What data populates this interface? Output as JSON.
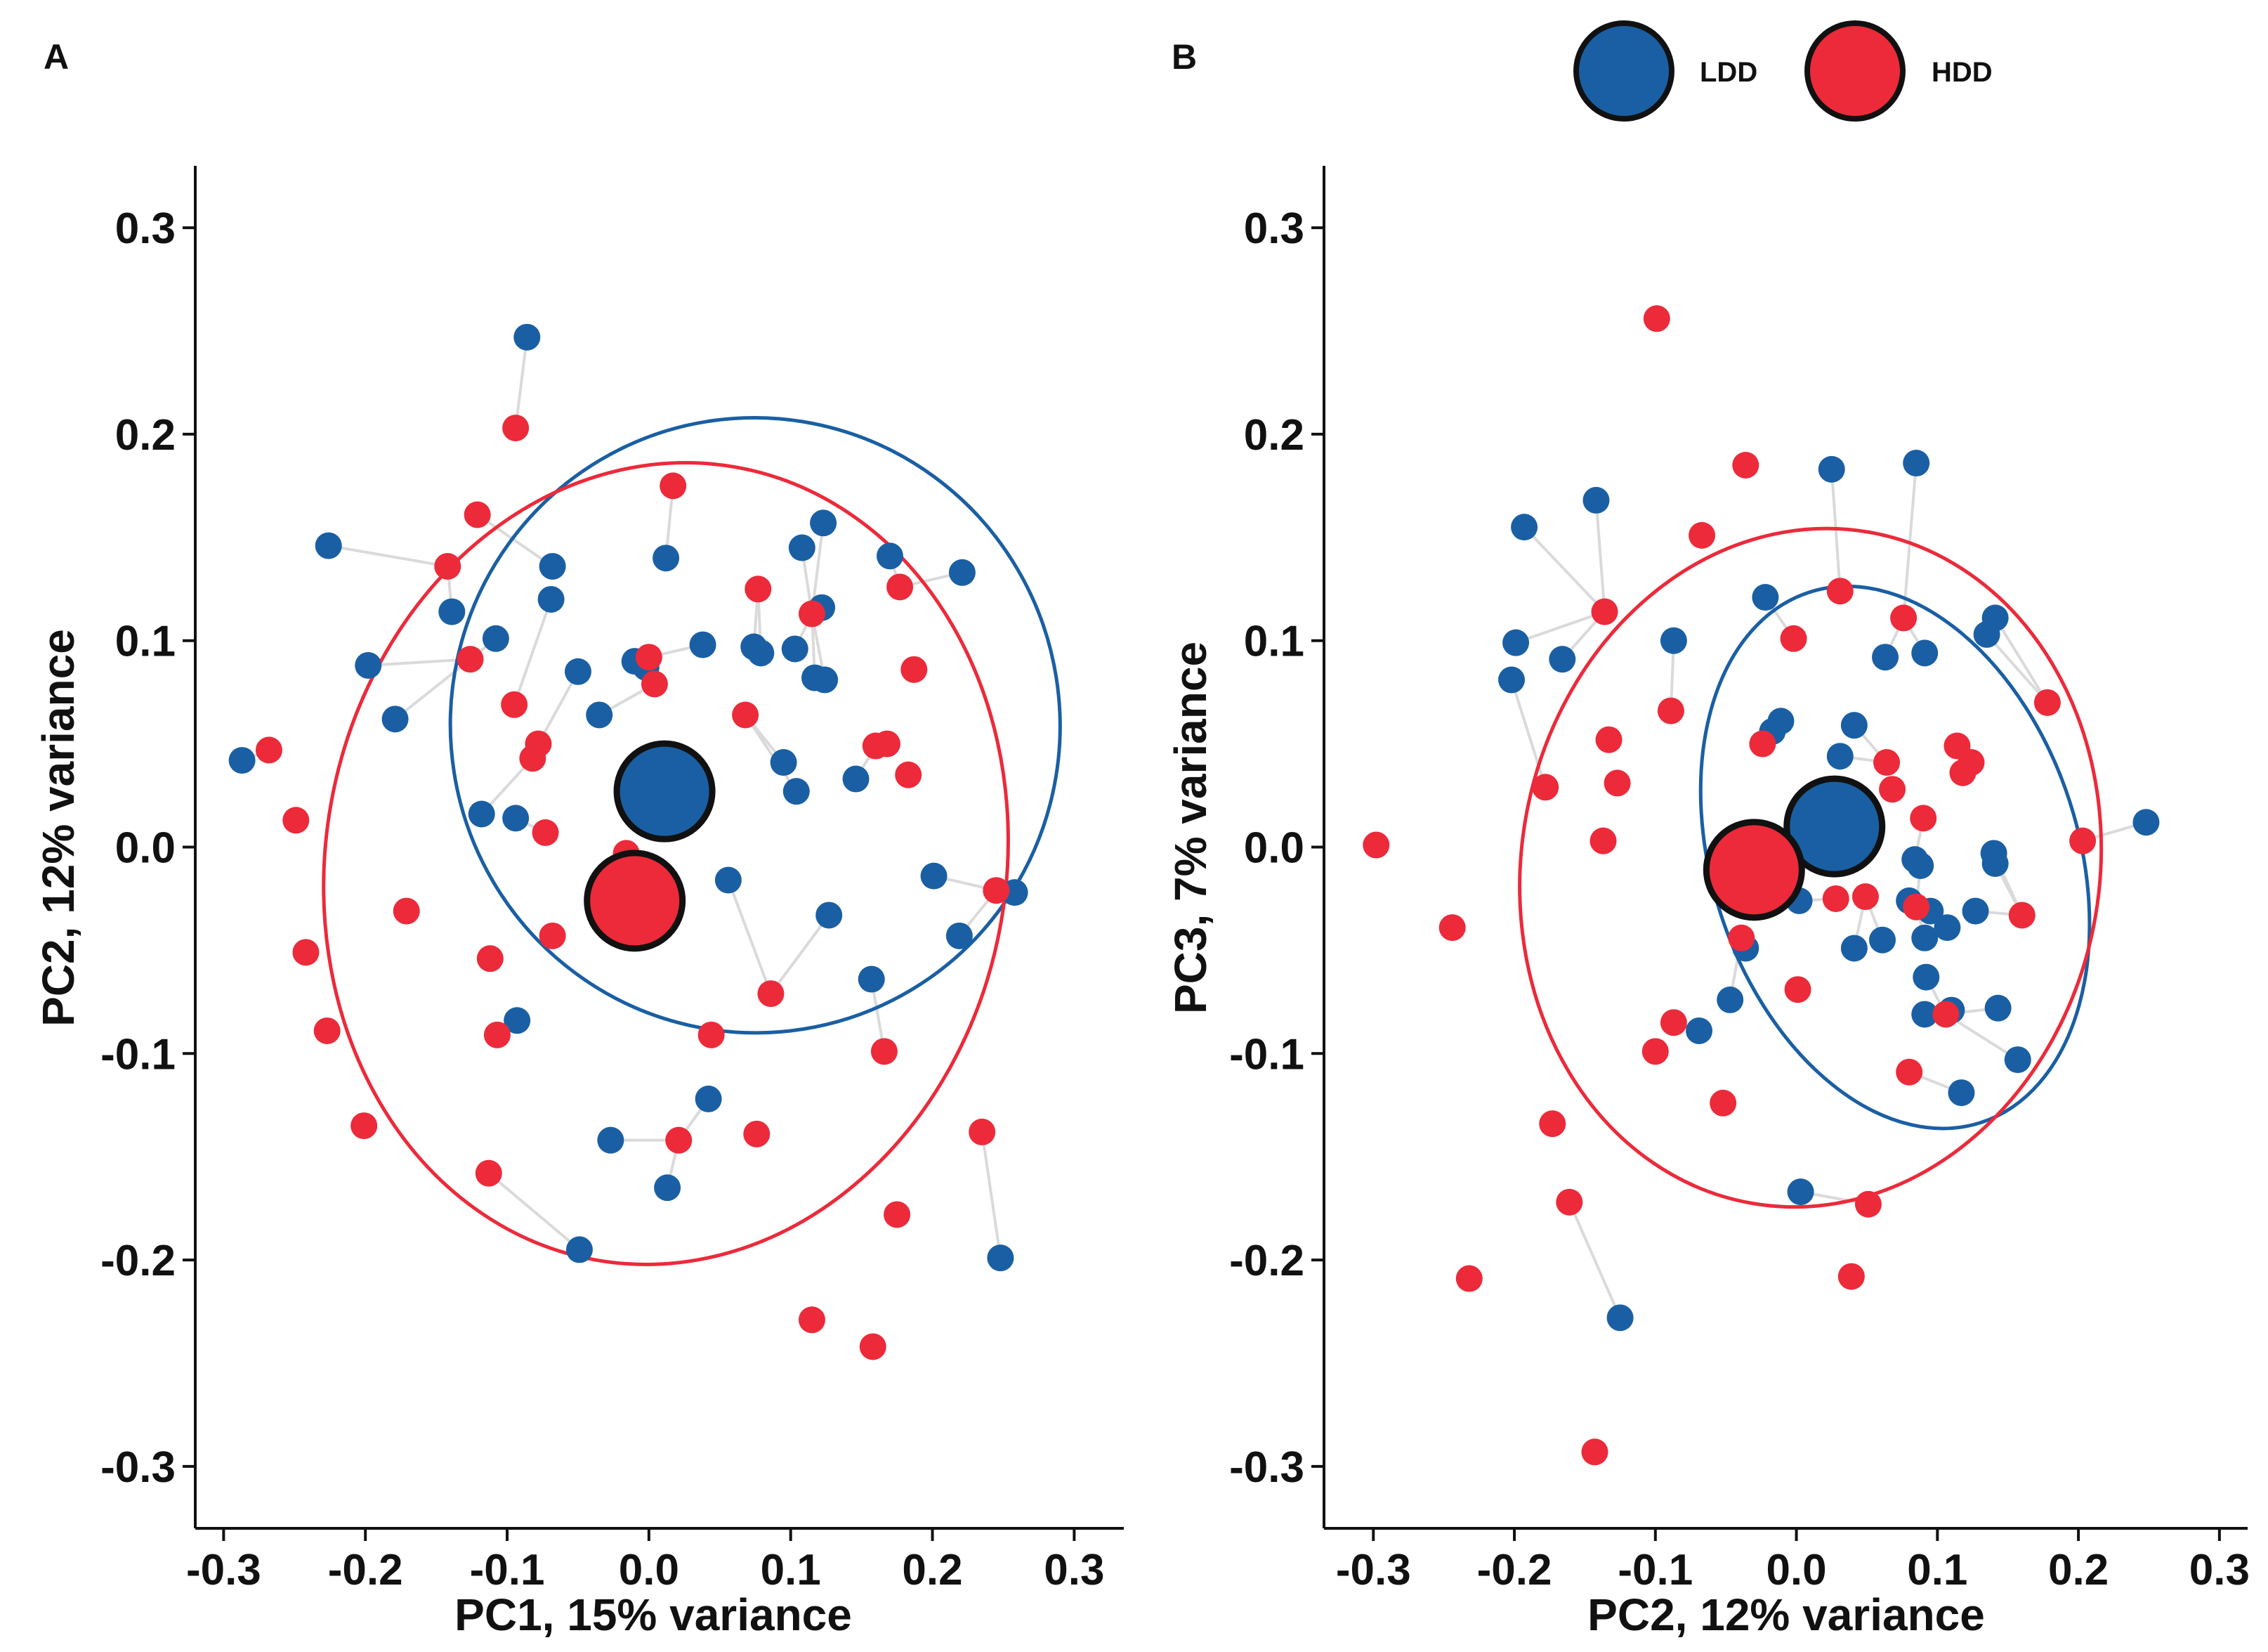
{
  "colors": {
    "LDD": "#1a5fa3",
    "HDD": "#ec2a3a",
    "link": "#dadada",
    "axis": "#111111"
  },
  "legend": {
    "items": [
      {
        "label": "LDD",
        "group": "LDD"
      },
      {
        "label": "HDD",
        "group": "HDD"
      }
    ]
  },
  "chart_data": [
    {
      "type": "scatter",
      "panel_label": "A",
      "xlabel": "PC1, 15% variance",
      "ylabel": "PC2, 12% variance",
      "xlim": [
        -0.32,
        0.335
      ],
      "ylim": [
        -0.33,
        0.33
      ],
      "xticks": [
        -0.3,
        -0.2,
        -0.1,
        0.0,
        0.1,
        0.2,
        0.3
      ],
      "yticks": [
        -0.3,
        -0.2,
        -0.1,
        0.0,
        0.1,
        0.2,
        0.3
      ],
      "xtick_labels": [
        "-0.3",
        "-0.2",
        "-0.1",
        "0.0",
        "0.1",
        "0.2",
        "0.3"
      ],
      "ytick_labels": [
        "-0.3",
        "-0.2",
        "-0.1",
        "0.0",
        "0.1",
        "0.2",
        "0.3"
      ],
      "grid": false,
      "centroids": [
        {
          "group": "LDD",
          "x": 0.011,
          "y": 0.027
        },
        {
          "group": "HDD",
          "x": -0.01,
          "y": -0.026
        }
      ],
      "ellipses": [
        {
          "group": "LDD",
          "cx": 0.075,
          "cy": 0.059,
          "rx": 0.215,
          "ry": 0.149,
          "angle": -9
        },
        {
          "group": "HDD",
          "cx": 0.012,
          "cy": -0.008,
          "rx": 0.24,
          "ry": 0.195,
          "angle": 10
        }
      ],
      "series": [
        {
          "name": "LDD",
          "points": [
            [
              -0.086,
              0.247
            ],
            [
              -0.226,
              0.146
            ],
            [
              -0.068,
              0.136
            ],
            [
              0.012,
              0.14
            ],
            [
              0.108,
              0.145
            ],
            [
              0.123,
              0.157
            ],
            [
              0.17,
              0.141
            ],
            [
              0.221,
              0.133
            ],
            [
              -0.139,
              0.114
            ],
            [
              -0.069,
              0.12
            ],
            [
              0.122,
              0.116
            ],
            [
              -0.108,
              0.101
            ],
            [
              0.038,
              0.098
            ],
            [
              0.074,
              0.097
            ],
            [
              0.079,
              0.094
            ],
            [
              0.103,
              0.096
            ],
            [
              0.117,
              0.082
            ],
            [
              0.124,
              0.081
            ],
            [
              -0.198,
              0.088
            ],
            [
              -0.05,
              0.085
            ],
            [
              -0.01,
              0.09
            ],
            [
              -0.002,
              0.087
            ],
            [
              -0.179,
              0.062
            ],
            [
              -0.035,
              0.064
            ],
            [
              0.095,
              0.041
            ],
            [
              0.146,
              0.033
            ],
            [
              0.104,
              0.027
            ],
            [
              -0.287,
              0.042
            ],
            [
              -0.118,
              0.016
            ],
            [
              -0.094,
              0.014
            ],
            [
              0.056,
              -0.016
            ],
            [
              0.201,
              -0.014
            ],
            [
              0.258,
              -0.022
            ],
            [
              0.127,
              -0.033
            ],
            [
              0.219,
              -0.043
            ],
            [
              0.157,
              -0.064
            ],
            [
              -0.093,
              -0.084
            ],
            [
              0.042,
              -0.122
            ],
            [
              -0.027,
              -0.142
            ],
            [
              0.013,
              -0.165
            ],
            [
              -0.049,
              -0.195
            ],
            [
              0.248,
              -0.199
            ]
          ]
        },
        {
          "name": "HDD",
          "points": [
            [
              -0.094,
              0.203
            ],
            [
              0.017,
              0.175
            ],
            [
              -0.121,
              0.161
            ],
            [
              -0.142,
              0.136
            ],
            [
              0.077,
              0.125
            ],
            [
              0.177,
              0.126
            ],
            [
              0.115,
              0.113
            ],
            [
              -0.126,
              0.091
            ],
            [
              0.0,
              0.092
            ],
            [
              0.187,
              0.086
            ],
            [
              0.004,
              0.079
            ],
            [
              -0.095,
              0.069
            ],
            [
              0.068,
              0.064
            ],
            [
              -0.268,
              0.047
            ],
            [
              -0.078,
              0.05
            ],
            [
              -0.082,
              0.043
            ],
            [
              0.16,
              0.049
            ],
            [
              0.168,
              0.05
            ],
            [
              0.183,
              0.035
            ],
            [
              -0.249,
              0.013
            ],
            [
              -0.073,
              0.007
            ],
            [
              -0.016,
              -0.003
            ],
            [
              -0.068,
              -0.043
            ],
            [
              -0.171,
              -0.031
            ],
            [
              0.245,
              -0.021
            ],
            [
              -0.242,
              -0.051
            ],
            [
              -0.112,
              -0.054
            ],
            [
              0.086,
              -0.071
            ],
            [
              -0.227,
              -0.089
            ],
            [
              -0.107,
              -0.091
            ],
            [
              0.044,
              -0.091
            ],
            [
              0.166,
              -0.099
            ],
            [
              -0.201,
              -0.135
            ],
            [
              0.076,
              -0.139
            ],
            [
              0.021,
              -0.142
            ],
            [
              0.235,
              -0.138
            ],
            [
              -0.113,
              -0.158
            ],
            [
              0.175,
              -0.178
            ],
            [
              0.115,
              -0.229
            ],
            [
              0.158,
              -0.242
            ]
          ]
        }
      ]
    },
    {
      "type": "scatter",
      "panel_label": "B",
      "xlabel": "PC2, 12% variance",
      "ylabel": "PC3, 7% variance",
      "xlim": [
        -0.335,
        0.32
      ],
      "ylim": [
        -0.33,
        0.33
      ],
      "xticks": [
        -0.3,
        -0.2,
        -0.1,
        0.0,
        0.1,
        0.2,
        0.3
      ],
      "yticks": [
        -0.3,
        -0.2,
        -0.1,
        0.0,
        0.1,
        0.2,
        0.3
      ],
      "xtick_labels": [
        "-0.3",
        "-0.2",
        "-0.1",
        "0.0",
        "0.1",
        "0.2",
        "0.3"
      ],
      "ytick_labels": [
        "-0.3",
        "-0.2",
        "-0.1",
        "0.0",
        "0.1",
        "0.2",
        "0.3"
      ],
      "grid": false,
      "centroids": [
        {
          "group": "LDD",
          "x": 0.027,
          "y": 0.01
        },
        {
          "group": "HDD",
          "x": -0.03,
          "y": -0.011
        }
      ],
      "ellipses": [
        {
          "group": "LDD",
          "cx": 0.07,
          "cy": -0.005,
          "rx": 0.13,
          "ry": 0.135,
          "angle": -18
        },
        {
          "group": "HDD",
          "cx": 0.01,
          "cy": -0.01,
          "rx": 0.205,
          "ry": 0.165,
          "angle": 10
        }
      ],
      "series": [
        {
          "name": "LDD",
          "points": [
            [
              -0.193,
              0.155
            ],
            [
              -0.142,
              0.168
            ],
            [
              0.025,
              0.183
            ],
            [
              0.085,
              0.186
            ],
            [
              -0.199,
              0.099
            ],
            [
              -0.202,
              0.081
            ],
            [
              -0.166,
              0.091
            ],
            [
              -0.087,
              0.1
            ],
            [
              -0.022,
              0.121
            ],
            [
              0.141,
              0.111
            ],
            [
              0.135,
              0.103
            ],
            [
              0.063,
              0.092
            ],
            [
              0.091,
              0.094
            ],
            [
              -0.011,
              0.061
            ],
            [
              -0.017,
              0.056
            ],
            [
              0.041,
              0.059
            ],
            [
              0.031,
              0.044
            ],
            [
              0.248,
              0.012
            ],
            [
              0.084,
              -0.006
            ],
            [
              0.088,
              -0.009
            ],
            [
              0.14,
              -0.003
            ],
            [
              0.141,
              -0.008
            ],
            [
              0.002,
              -0.026
            ],
            [
              0.061,
              -0.045
            ],
            [
              0.041,
              -0.049
            ],
            [
              0.095,
              -0.031
            ],
            [
              0.107,
              -0.039
            ],
            [
              0.127,
              -0.031
            ],
            [
              0.08,
              -0.026
            ],
            [
              0.091,
              -0.044
            ],
            [
              -0.036,
              -0.049
            ],
            [
              0.092,
              -0.063
            ],
            [
              -0.047,
              -0.074
            ],
            [
              -0.069,
              -0.089
            ],
            [
              0.091,
              -0.081
            ],
            [
              0.11,
              -0.079
            ],
            [
              0.143,
              -0.078
            ],
            [
              0.157,
              -0.103
            ],
            [
              0.117,
              -0.119
            ],
            [
              0.003,
              -0.167
            ],
            [
              -0.125,
              -0.228
            ]
          ]
        },
        {
          "name": "HDD",
          "points": [
            [
              -0.099,
              0.256
            ],
            [
              -0.036,
              0.185
            ],
            [
              -0.067,
              0.151
            ],
            [
              0.031,
              0.124
            ],
            [
              0.076,
              0.111
            ],
            [
              -0.136,
              0.114
            ],
            [
              -0.002,
              0.101
            ],
            [
              -0.089,
              0.066
            ],
            [
              0.178,
              0.07
            ],
            [
              -0.133,
              0.052
            ],
            [
              -0.024,
              0.05
            ],
            [
              0.114,
              0.049
            ],
            [
              0.124,
              0.041
            ],
            [
              0.064,
              0.041
            ],
            [
              0.118,
              0.036
            ],
            [
              -0.178,
              0.029
            ],
            [
              -0.127,
              0.031
            ],
            [
              0.068,
              0.028
            ],
            [
              0.09,
              0.014
            ],
            [
              -0.137,
              0.003
            ],
            [
              0.203,
              0.003
            ],
            [
              -0.298,
              0.001
            ],
            [
              0.049,
              -0.024
            ],
            [
              0.028,
              -0.025
            ],
            [
              0.085,
              -0.029
            ],
            [
              0.16,
              -0.033
            ],
            [
              -0.039,
              -0.044
            ],
            [
              -0.244,
              -0.039
            ],
            [
              0.001,
              -0.069
            ],
            [
              -0.087,
              -0.085
            ],
            [
              0.106,
              -0.081
            ],
            [
              -0.1,
              -0.099
            ],
            [
              0.08,
              -0.109
            ],
            [
              -0.173,
              -0.134
            ],
            [
              -0.052,
              -0.124
            ],
            [
              -0.161,
              -0.172
            ],
            [
              0.051,
              -0.173
            ],
            [
              0.039,
              -0.208
            ],
            [
              -0.232,
              -0.209
            ],
            [
              -0.143,
              -0.293
            ]
          ]
        }
      ]
    }
  ]
}
